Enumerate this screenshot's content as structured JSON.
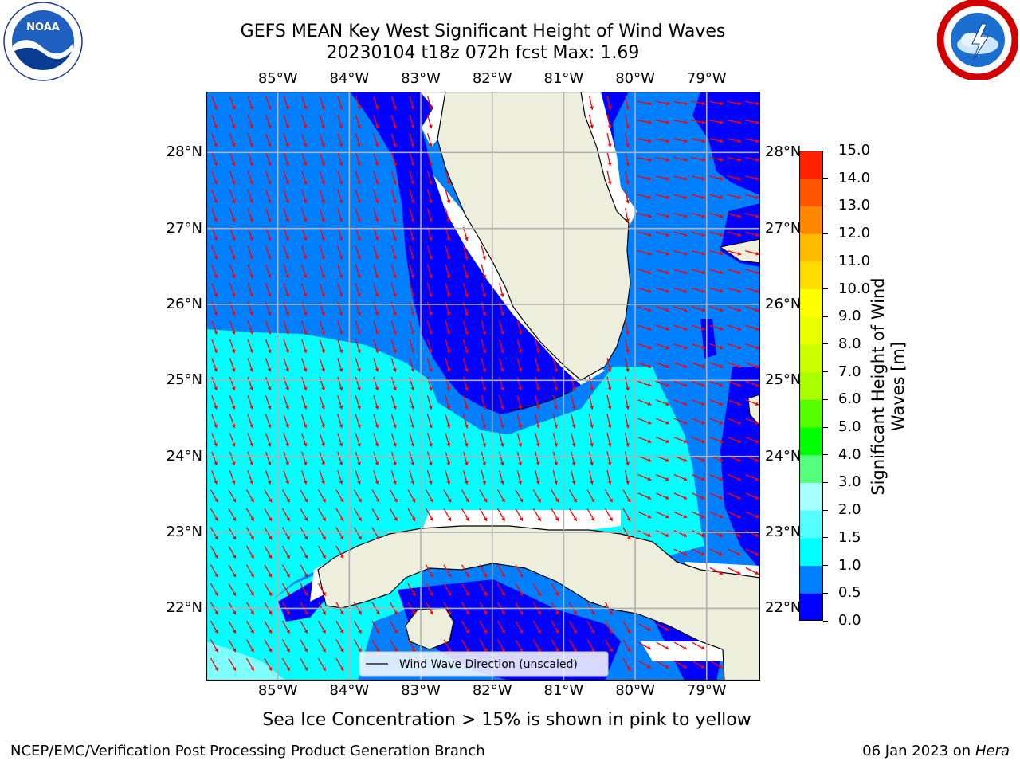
{
  "header": {
    "title_line1": "GEFS MEAN Key West Significant Height of Wind Waves",
    "title_line2": "20230104 t18z 072h fcst   Max: 1.69"
  },
  "logos": {
    "left": {
      "name": "NOAA",
      "ring_text": "NATIONAL OCEANIC AND ATMOSPHERIC ADMINISTRATION · U.S. DEPARTMENT OF COMMERCE"
    },
    "right": {
      "name": "NATIONAL WEATHER SERVICE"
    }
  },
  "map": {
    "lon_labels": [
      "85°W",
      "84°W",
      "83°W",
      "82°W",
      "81°W",
      "80°W",
      "79°W"
    ],
    "lat_labels": [
      "28°N",
      "27°N",
      "26°N",
      "25°N",
      "24°N",
      "23°N",
      "22°N"
    ],
    "lon_values": [
      -85,
      -84,
      -83,
      -82,
      -81,
      -80,
      -79
    ],
    "lat_values": [
      28,
      27,
      26,
      25,
      24,
      23,
      22
    ],
    "extent": {
      "lon": [
        -86,
        -78.25
      ],
      "lat": [
        21.05,
        28.8
      ]
    },
    "legend_label": "Wind Wave Direction (unscaled)",
    "arrow_color": "#ff0000",
    "land_color": "#eeeedd",
    "colors": {
      "dark_blue": "#0000ff",
      "mid_blue": "#0080ff",
      "cyan": "#00ffff",
      "light_cyan": "#80ffff"
    }
  },
  "colorbar": {
    "label": "Significant Height of Wind Waves [m]",
    "ticks": [
      "0.0",
      "0.5",
      "1.0",
      "1.5",
      "2.0",
      "3.0",
      "4.0",
      "5.0",
      "6.0",
      "7.0",
      "8.0",
      "9.0",
      "10.0",
      "11.0",
      "12.0",
      "13.0",
      "14.0",
      "15.0"
    ],
    "colors": [
      "#0000ff",
      "#0080ff",
      "#00ffff",
      "#55ffff",
      "#aaffff",
      "#55ff80",
      "#00ff00",
      "#55ff00",
      "#aaff00",
      "#ccff00",
      "#e8ff00",
      "#ffff00",
      "#ffdd00",
      "#ffbb00",
      "#ff8800",
      "#ff5500",
      "#ff2200"
    ]
  },
  "note": "Sea Ice Concentration > 15% is shown in pink to yellow",
  "footer": {
    "left": "NCEP/EMC/Verification Post Processing Product Generation Branch",
    "right_prefix": "06 Jan 2023 on ",
    "right_host": "Hera"
  }
}
